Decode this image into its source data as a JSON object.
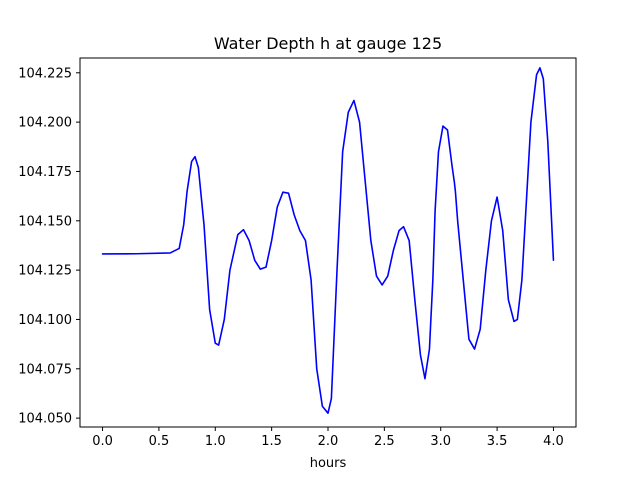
{
  "chart_data": {
    "type": "line",
    "title": "Water Depth h at gauge 125",
    "xlabel": "hours",
    "ylabel": "",
    "xlim": [
      -0.2,
      4.2
    ],
    "ylim": [
      104.0455,
      104.2325
    ],
    "grid": false,
    "legend": "none",
    "x_ticks": [
      0.0,
      0.5,
      1.0,
      1.5,
      2.0,
      2.5,
      3.0,
      3.5,
      4.0
    ],
    "x_tick_labels": [
      "0.0",
      "0.5",
      "1.0",
      "1.5",
      "2.0",
      "2.5",
      "3.0",
      "3.5",
      "4.0"
    ],
    "y_ticks": [
      104.05,
      104.075,
      104.1,
      104.125,
      104.15,
      104.175,
      104.2,
      104.225
    ],
    "y_tick_labels": [
      "104.050",
      "104.075",
      "104.100",
      "104.125",
      "104.150",
      "104.175",
      "104.200",
      "104.225"
    ],
    "series": [
      {
        "color": "#0000ff",
        "x": [
          0.0,
          0.3,
          0.6,
          0.68,
          0.72,
          0.75,
          0.79,
          0.82,
          0.85,
          0.9,
          0.95,
          1.0,
          1.03,
          1.08,
          1.13,
          1.2,
          1.25,
          1.3,
          1.35,
          1.4,
          1.45,
          1.5,
          1.55,
          1.6,
          1.65,
          1.7,
          1.75,
          1.8,
          1.85,
          1.9,
          1.95,
          2.0,
          2.03,
          2.08,
          2.13,
          2.18,
          2.23,
          2.28,
          2.33,
          2.38,
          2.43,
          2.48,
          2.53,
          2.58,
          2.63,
          2.67,
          2.72,
          2.77,
          2.82,
          2.86,
          2.9,
          2.91,
          2.93,
          2.95,
          2.98,
          3.02,
          3.06,
          3.1,
          3.12,
          3.13,
          3.15,
          3.2,
          3.25,
          3.3,
          3.35,
          3.4,
          3.45,
          3.5,
          3.55,
          3.6,
          3.65,
          3.68,
          3.72,
          3.76,
          3.8,
          3.85,
          3.88,
          3.91,
          3.95,
          4.0
        ],
        "y": [
          104.1332,
          104.1333,
          104.1337,
          104.136,
          104.148,
          104.165,
          104.18,
          104.1825,
          104.177,
          104.148,
          104.105,
          104.088,
          104.087,
          104.1,
          104.125,
          104.143,
          104.1455,
          104.14,
          104.13,
          104.1255,
          104.1265,
          104.14,
          104.157,
          104.1645,
          104.164,
          104.153,
          104.145,
          104.14,
          104.12,
          104.075,
          104.056,
          104.0525,
          104.06,
          104.125,
          104.185,
          104.205,
          104.211,
          104.2,
          104.17,
          104.14,
          104.122,
          104.1175,
          104.122,
          104.135,
          104.145,
          104.147,
          104.14,
          104.11,
          104.082,
          104.07,
          104.085,
          104.097,
          104.12,
          104.155,
          104.185,
          104.198,
          104.196,
          104.178,
          104.17,
          104.165,
          104.15,
          104.12,
          104.09,
          104.085,
          104.095,
          104.125,
          104.15,
          104.162,
          104.145,
          104.11,
          104.099,
          104.1,
          104.12,
          104.16,
          104.2,
          104.224,
          104.2275,
          104.222,
          104.19,
          104.13
        ]
      }
    ]
  }
}
